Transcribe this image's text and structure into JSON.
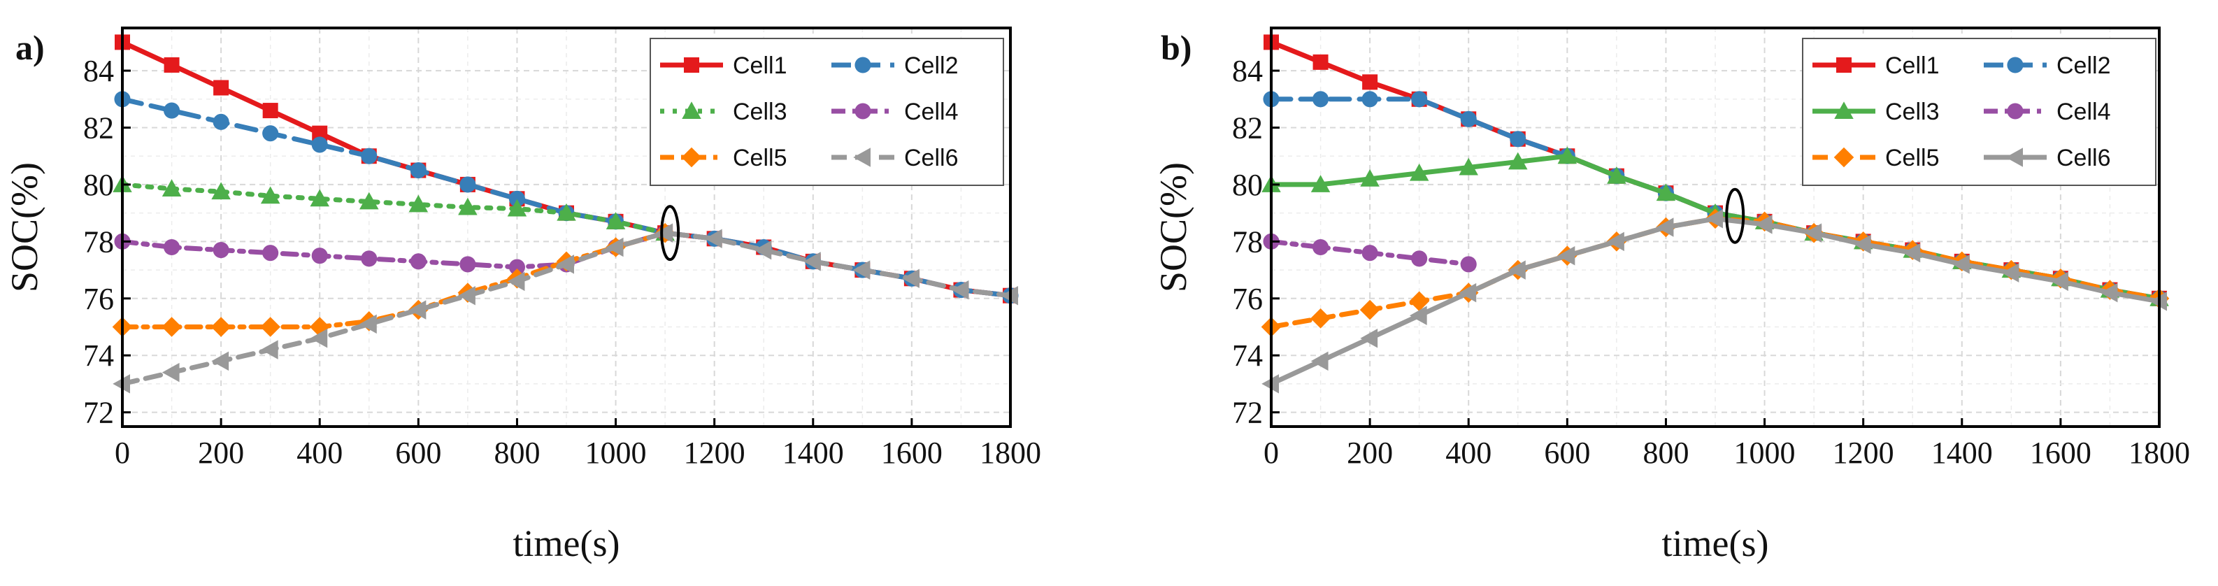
{
  "chart_data": [
    {
      "panel_label": "a)",
      "type": "line",
      "xlabel": "time(s)",
      "ylabel": "SOC(%)",
      "xlim": [
        0,
        1800
      ],
      "ylim": [
        71.5,
        85.5
      ],
      "xticks": [
        0,
        200,
        400,
        600,
        800,
        1000,
        1200,
        1400,
        1600,
        1800
      ],
      "yticks": [
        72,
        74,
        76,
        78,
        80,
        82,
        84
      ],
      "grid": true,
      "legend_position": "top-right",
      "annotation": "ellipse marking convergence at t ≈ 1110 s",
      "annotation_point": [
        1110,
        78.3
      ],
      "series": [
        {
          "name": "Cell1",
          "color": "#e41a1c",
          "marker": "square",
          "dash": "solid",
          "x": [
            0,
            100,
            200,
            300,
            400,
            500,
            600,
            700,
            800,
            900,
            1000,
            1100,
            1200,
            1300,
            1400,
            1500,
            1600,
            1700,
            1800
          ],
          "y": [
            85,
            84.2,
            83.4,
            82.6,
            81.8,
            81,
            80.5,
            80,
            79.5,
            79,
            78.7,
            78.3,
            78.1,
            77.8,
            77.3,
            77,
            76.7,
            76.3,
            76.1
          ]
        },
        {
          "name": "Cell2",
          "color": "#377eb8",
          "marker": "circle",
          "dash": "longdash",
          "x": [
            0,
            100,
            200,
            300,
            400,
            500,
            600,
            700,
            800,
            900,
            1000,
            1100,
            1200,
            1300,
            1400,
            1500,
            1600,
            1700,
            1800
          ],
          "y": [
            83,
            82.6,
            82.2,
            81.8,
            81.4,
            81,
            80.5,
            80,
            79.5,
            79,
            78.7,
            78.3,
            78.1,
            77.8,
            77.3,
            77,
            76.7,
            76.3,
            76.1
          ]
        },
        {
          "name": "Cell3",
          "color": "#4daf4a",
          "marker": "triangle-up",
          "dash": "dot",
          "x": [
            0,
            100,
            200,
            300,
            400,
            500,
            600,
            700,
            800,
            900,
            1000,
            1100
          ],
          "y": [
            80,
            79.85,
            79.75,
            79.6,
            79.5,
            79.4,
            79.3,
            79.2,
            79.15,
            79,
            78.7,
            78.3
          ]
        },
        {
          "name": "Cell4",
          "color": "#984ea3",
          "marker": "circle",
          "dash": "dashdot",
          "x": [
            0,
            100,
            200,
            300,
            400,
            500,
            600,
            700,
            800,
            900,
            1000,
            1100
          ],
          "y": [
            78,
            77.8,
            77.7,
            77.6,
            77.5,
            77.4,
            77.3,
            77.2,
            77.1,
            77.2,
            77.8,
            78.3
          ]
        },
        {
          "name": "Cell5",
          "color": "#ff7f00",
          "marker": "diamond",
          "dash": "dashdot",
          "x": [
            0,
            100,
            200,
            300,
            400,
            500,
            600,
            700,
            800,
            900,
            1000,
            1100
          ],
          "y": [
            75,
            75,
            75,
            75,
            75,
            75.2,
            75.6,
            76.2,
            76.7,
            77.3,
            77.8,
            78.3
          ]
        },
        {
          "name": "Cell6",
          "color": "#999999",
          "marker": "triangle-left",
          "dash": "dash",
          "x": [
            0,
            100,
            200,
            300,
            400,
            500,
            600,
            700,
            800,
            900,
            1000,
            1100,
            1200,
            1300,
            1400,
            1500,
            1600,
            1700,
            1800
          ],
          "y": [
            73,
            73.4,
            73.8,
            74.2,
            74.6,
            75.1,
            75.6,
            76.1,
            76.6,
            77.2,
            77.8,
            78.3,
            78.1,
            77.7,
            77.3,
            77,
            76.7,
            76.3,
            76.1
          ]
        }
      ]
    },
    {
      "panel_label": "b)",
      "type": "line",
      "xlabel": "time(s)",
      "ylabel": "SOC(%)",
      "xlim": [
        0,
        1800
      ],
      "ylim": [
        71.5,
        85.5
      ],
      "xticks": [
        0,
        200,
        400,
        600,
        800,
        1000,
        1200,
        1400,
        1600,
        1800
      ],
      "yticks": [
        72,
        74,
        76,
        78,
        80,
        82,
        84
      ],
      "grid": true,
      "legend_position": "top-right",
      "annotation": "ellipse marking convergence at t ≈ 940 s",
      "annotation_point": [
        940,
        78.9
      ],
      "series": [
        {
          "name": "Cell1",
          "color": "#e41a1c",
          "marker": "square",
          "dash": "solid",
          "x": [
            0,
            100,
            200,
            300,
            400,
            500,
            600,
            700,
            800,
            900,
            1000,
            1100,
            1200,
            1300,
            1400,
            1500,
            1600,
            1700,
            1800
          ],
          "y": [
            85,
            84.3,
            83.6,
            83,
            82.3,
            81.6,
            81,
            80.3,
            79.7,
            79,
            78.7,
            78.3,
            78,
            77.7,
            77.3,
            77,
            76.7,
            76.3,
            76
          ]
        },
        {
          "name": "Cell2",
          "color": "#377eb8",
          "marker": "circle",
          "dash": "longdash",
          "x": [
            0,
            100,
            200,
            300,
            400,
            500,
            600,
            700,
            800,
            900,
            1000,
            1100,
            1200,
            1300,
            1400,
            1500,
            1600,
            1700,
            1800
          ],
          "y": [
            83,
            83,
            83,
            83,
            82.3,
            81.6,
            81,
            80.3,
            79.7,
            79,
            78.7,
            78.3,
            78,
            77.7,
            77.3,
            77,
            76.7,
            76.3,
            76
          ]
        },
        {
          "name": "Cell3",
          "color": "#4daf4a",
          "marker": "triangle-up",
          "dash": "solid",
          "x": [
            0,
            100,
            200,
            300,
            400,
            500,
            600,
            700,
            800,
            900,
            1000,
            1100,
            1200,
            1300,
            1400,
            1500,
            1600,
            1700,
            1800
          ],
          "y": [
            80,
            80,
            80.2,
            80.4,
            80.6,
            80.8,
            81,
            80.3,
            79.7,
            79,
            78.7,
            78.3,
            78,
            77.7,
            77.3,
            77,
            76.7,
            76.3,
            76
          ]
        },
        {
          "name": "Cell4",
          "color": "#984ea3",
          "marker": "circle",
          "dash": "dashdot",
          "x": [
            0,
            100,
            200,
            300,
            400
          ],
          "y": [
            78,
            77.8,
            77.6,
            77.4,
            77.2
          ]
        },
        {
          "name": "Cell5",
          "color": "#ff7f00",
          "marker": "diamond",
          "dash": "dash",
          "x": [
            0,
            100,
            200,
            300,
            400,
            500,
            600,
            700,
            800,
            900,
            1000,
            1100,
            1200,
            1300,
            1400,
            1500,
            1600,
            1700,
            1800
          ],
          "y": [
            75,
            75.3,
            75.6,
            75.9,
            76.2,
            77,
            77.5,
            78,
            78.5,
            78.8,
            78.7,
            78.3,
            78,
            77.7,
            77.3,
            77,
            76.7,
            76.3,
            76
          ]
        },
        {
          "name": "Cell6",
          "color": "#999999",
          "marker": "triangle-left",
          "dash": "solid",
          "x": [
            0,
            100,
            200,
            300,
            400,
            500,
            600,
            700,
            800,
            900,
            1000,
            1100,
            1200,
            1300,
            1400,
            1500,
            1600,
            1700,
            1800
          ],
          "y": [
            73,
            73.8,
            74.6,
            75.4,
            76.2,
            77,
            77.5,
            78,
            78.5,
            78.8,
            78.6,
            78.3,
            77.9,
            77.6,
            77.2,
            76.9,
            76.6,
            76.2,
            75.9
          ]
        }
      ]
    }
  ]
}
